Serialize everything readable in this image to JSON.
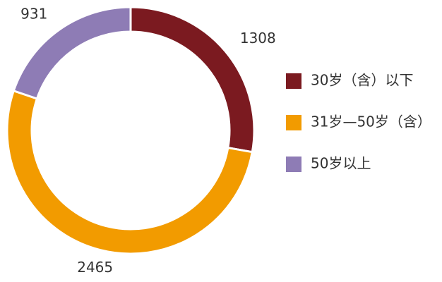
{
  "chart_data": {
    "type": "donut",
    "categories": [
      "30岁（含）以下",
      "31岁—50岁（含）",
      "50岁以上"
    ],
    "values": [
      1308,
      2465,
      931
    ],
    "colors": [
      "#7b1a20",
      "#f29b00",
      "#8e7cb5"
    ],
    "legend": "right"
  }
}
